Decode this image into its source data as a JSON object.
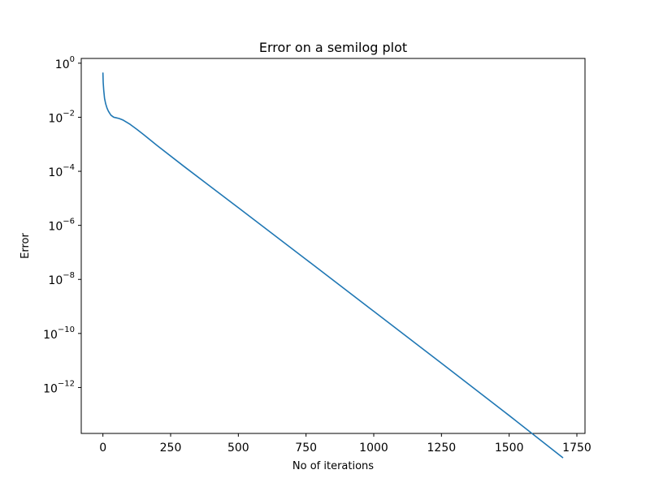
{
  "chart_data": {
    "type": "line",
    "title": "Error on a semilog plot",
    "xlabel": "No of iterations",
    "ylabel": "Error",
    "x_scale": "linear",
    "y_scale": "log",
    "xlim": [
      -80,
      1780
    ],
    "ylim": [
      2e-14,
      1.5
    ],
    "grid": false,
    "x_ticks": [
      0,
      250,
      500,
      750,
      1000,
      1250,
      1500,
      1750
    ],
    "x_tick_labels": [
      "0",
      "250",
      "500",
      "750",
      "1000",
      "1250",
      "1500",
      "1750"
    ],
    "y_ticks": [
      1,
      0.01,
      0.0001,
      1e-06,
      1e-08,
      1e-10,
      1e-12
    ],
    "y_tick_labels": [
      {
        "base": "10",
        "exp": "0"
      },
      {
        "base": "10",
        "exp": "−2"
      },
      {
        "base": "10",
        "exp": "−4"
      },
      {
        "base": "10",
        "exp": "−6"
      },
      {
        "base": "10",
        "exp": "−8"
      },
      {
        "base": "10",
        "exp": "−10"
      },
      {
        "base": "10",
        "exp": "−12"
      }
    ],
    "series": [
      {
        "color": "#1f77b4",
        "x": [
          0,
          1,
          3,
          6,
          10,
          15,
          20,
          25,
          30,
          40,
          50,
          60,
          75,
          100,
          125,
          150,
          200,
          300,
          500,
          750,
          1000,
          1250,
          1500,
          1699
        ],
        "y": [
          0.45,
          0.2,
          0.1,
          0.05,
          0.032,
          0.022,
          0.017,
          0.014,
          0.0118,
          0.01,
          0.0095,
          0.009,
          0.0078,
          0.0055,
          0.0036,
          0.0023,
          0.0009,
          0.00015,
          4.5e-06,
          5.5e-08,
          6.6e-10,
          7.9e-12,
          9.2e-14,
          2.5e-15
        ]
      }
    ]
  }
}
